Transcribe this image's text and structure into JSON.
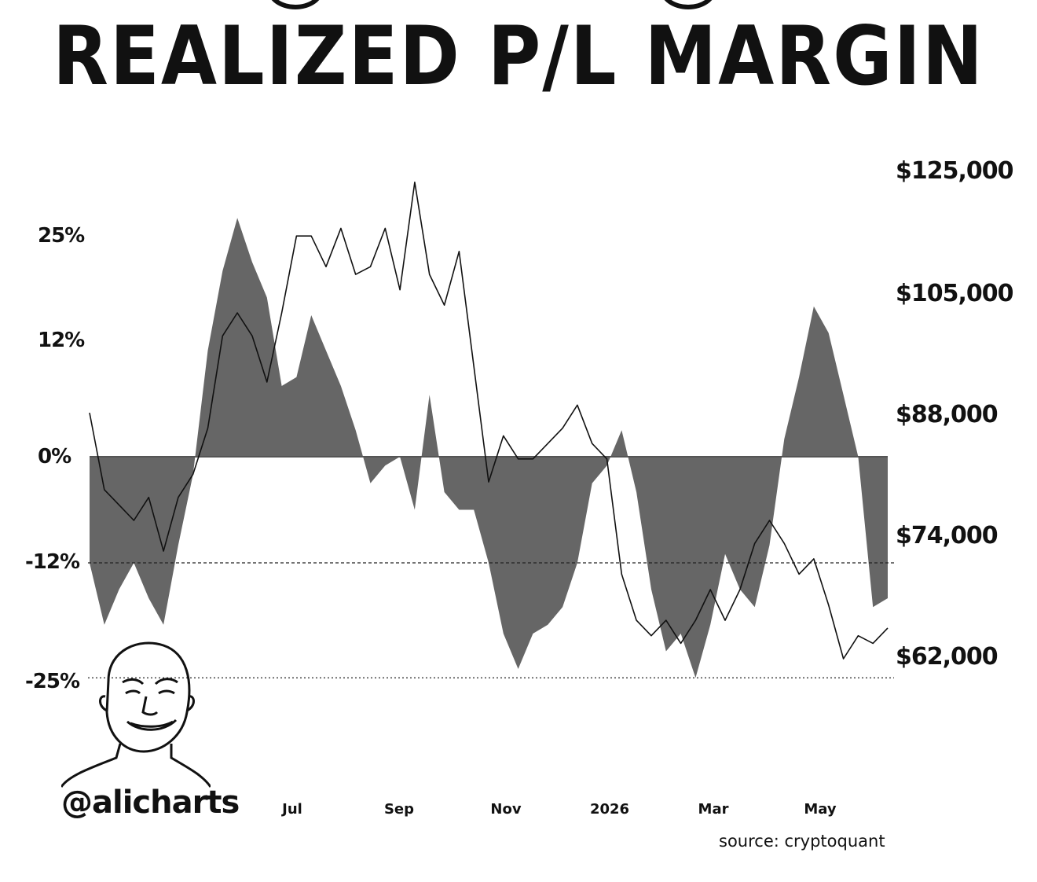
{
  "title": "REALIZED P/L MARGIN",
  "handle": "@alicharts",
  "source": "source: cryptoquant",
  "colors": {
    "fill": "#666666",
    "line": "#111111",
    "background": "#ffffff"
  },
  "chart_data": {
    "type": "area",
    "title": "REALIZED P/L MARGIN",
    "x_ticks": [
      "Jul",
      "Sep",
      "Nov",
      "2026",
      "Mar",
      "May"
    ],
    "y_left_ticks": [
      "25%",
      "12%",
      "0%",
      "-12%",
      "-25%"
    ],
    "y_left_values": [
      25,
      12,
      0,
      -12,
      -25
    ],
    "y_right_ticks": [
      "$125,000",
      "$105,000",
      "$88,000",
      "$74,000",
      "$62,000"
    ],
    "y_right_values": [
      125000,
      105000,
      88000,
      74000,
      62000
    ],
    "reference_lines": [
      {
        "axis": "left",
        "value": -12,
        "style": "dashed"
      },
      {
        "axis": "left",
        "value": -25,
        "style": "dotted"
      }
    ],
    "series": [
      {
        "axis": "left",
        "unit": "%",
        "style": "filled-area",
        "points": [
          [
            "2025-05-01",
            -12
          ],
          [
            "2025-05-08",
            -19
          ],
          [
            "2025-05-15",
            -15
          ],
          [
            "2025-05-22",
            -12
          ],
          [
            "2025-05-29",
            -16
          ],
          [
            "2025-06-05",
            -19
          ],
          [
            "2025-06-12",
            -10
          ],
          [
            "2025-06-19",
            -2
          ],
          [
            "2025-06-26",
            12
          ],
          [
            "2025-07-03",
            21
          ],
          [
            "2025-07-10",
            27
          ],
          [
            "2025-07-17",
            22
          ],
          [
            "2025-07-24",
            18
          ],
          [
            "2025-07-31",
            8
          ],
          [
            "2025-08-07",
            9
          ],
          [
            "2025-08-14",
            16
          ],
          [
            "2025-08-21",
            12
          ],
          [
            "2025-08-28",
            8
          ],
          [
            "2025-09-04",
            3
          ],
          [
            "2025-09-11",
            -3
          ],
          [
            "2025-09-18",
            -1
          ],
          [
            "2025-09-25",
            0
          ],
          [
            "2025-10-02",
            -6
          ],
          [
            "2025-10-09",
            7
          ],
          [
            "2025-10-16",
            -4
          ],
          [
            "2025-10-23",
            -6
          ],
          [
            "2025-10-30",
            -6
          ],
          [
            "2025-11-06",
            -12
          ],
          [
            "2025-11-13",
            -20
          ],
          [
            "2025-11-20",
            -24
          ],
          [
            "2025-11-27",
            -20
          ],
          [
            "2025-12-04",
            -19
          ],
          [
            "2025-12-11",
            -17
          ],
          [
            "2025-12-18",
            -12
          ],
          [
            "2025-12-25",
            -3
          ],
          [
            "2026-01-01",
            -1
          ],
          [
            "2026-01-08",
            3
          ],
          [
            "2026-01-15",
            -4
          ],
          [
            "2026-01-22",
            -15
          ],
          [
            "2026-01-29",
            -22
          ],
          [
            "2026-02-05",
            -20
          ],
          [
            "2026-02-12",
            -25
          ],
          [
            "2026-02-19",
            -19
          ],
          [
            "2026-02-26",
            -11
          ],
          [
            "2026-03-05",
            -15
          ],
          [
            "2026-03-12",
            -17
          ],
          [
            "2026-03-19",
            -10
          ],
          [
            "2026-03-26",
            2
          ],
          [
            "2026-04-02",
            9
          ],
          [
            "2026-04-09",
            17
          ],
          [
            "2026-04-16",
            14
          ],
          [
            "2026-04-23",
            7
          ],
          [
            "2026-04-30",
            0
          ],
          [
            "2026-05-07",
            -17
          ],
          [
            "2026-05-14",
            -16
          ]
        ]
      },
      {
        "axis": "right",
        "unit": "USD",
        "style": "line",
        "points": [
          [
            "2025-05-01",
            94000
          ],
          [
            "2025-05-08",
            84000
          ],
          [
            "2025-05-15",
            82000
          ],
          [
            "2025-05-22",
            80000
          ],
          [
            "2025-05-29",
            83000
          ],
          [
            "2025-06-05",
            76000
          ],
          [
            "2025-06-12",
            83000
          ],
          [
            "2025-06-19",
            86000
          ],
          [
            "2025-06-26",
            92000
          ],
          [
            "2025-07-03",
            104000
          ],
          [
            "2025-07-10",
            107000
          ],
          [
            "2025-07-17",
            104000
          ],
          [
            "2025-07-24",
            98000
          ],
          [
            "2025-07-31",
            107000
          ],
          [
            "2025-08-07",
            117000
          ],
          [
            "2025-08-14",
            117000
          ],
          [
            "2025-08-21",
            113000
          ],
          [
            "2025-08-28",
            118000
          ],
          [
            "2025-09-04",
            112000
          ],
          [
            "2025-09-11",
            113000
          ],
          [
            "2025-09-18",
            118000
          ],
          [
            "2025-09-25",
            110000
          ],
          [
            "2025-10-02",
            124000
          ],
          [
            "2025-10-09",
            112000
          ],
          [
            "2025-10-16",
            108000
          ],
          [
            "2025-10-23",
            115000
          ],
          [
            "2025-10-30",
            100000
          ],
          [
            "2025-11-06",
            85000
          ],
          [
            "2025-11-13",
            91000
          ],
          [
            "2025-11-20",
            88000
          ],
          [
            "2025-11-27",
            88000
          ],
          [
            "2025-12-04",
            90000
          ],
          [
            "2025-12-11",
            92000
          ],
          [
            "2025-12-18",
            95000
          ],
          [
            "2025-12-25",
            90000
          ],
          [
            "2026-01-01",
            88000
          ],
          [
            "2026-01-08",
            73000
          ],
          [
            "2026-01-15",
            67000
          ],
          [
            "2026-01-22",
            65000
          ],
          [
            "2026-01-29",
            67000
          ],
          [
            "2026-02-05",
            64000
          ],
          [
            "2026-02-12",
            67000
          ],
          [
            "2026-02-19",
            71000
          ],
          [
            "2026-02-26",
            67000
          ],
          [
            "2026-03-05",
            71000
          ],
          [
            "2026-03-12",
            77000
          ],
          [
            "2026-03-19",
            80000
          ],
          [
            "2026-03-26",
            77000
          ],
          [
            "2026-04-02",
            73000
          ],
          [
            "2026-04-09",
            75000
          ],
          [
            "2026-04-16",
            69000
          ],
          [
            "2026-04-23",
            62000
          ],
          [
            "2026-04-30",
            65000
          ],
          [
            "2026-05-07",
            64000
          ],
          [
            "2026-05-14",
            66000
          ]
        ]
      }
    ]
  }
}
